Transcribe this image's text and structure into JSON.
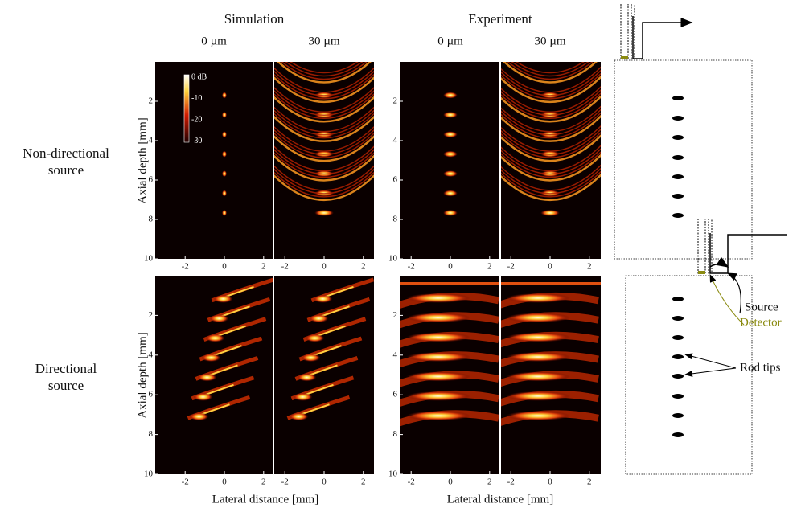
{
  "columns": {
    "simulation": "Simulation",
    "experiment": "Experiment",
    "sizes": [
      "0 µm",
      "30 µm",
      "0 µm",
      "30 µm"
    ]
  },
  "rows": [
    [
      "Non-directional",
      "source"
    ],
    [
      "Directional",
      "source"
    ]
  ],
  "y_axis_label": "Axial depth [mm]",
  "x_axis_label": "Lateral distance [mm]",
  "y_ticks": [
    "2",
    "4",
    "6",
    "8",
    "10"
  ],
  "x_ticks": [
    "-2",
    "0",
    "2"
  ],
  "colorbar": [
    "0 dB",
    "-10",
    "-20",
    "-30"
  ],
  "schematic": {
    "source": "Source",
    "detector": "Detector",
    "rod_tips": "Rod tips"
  }
}
